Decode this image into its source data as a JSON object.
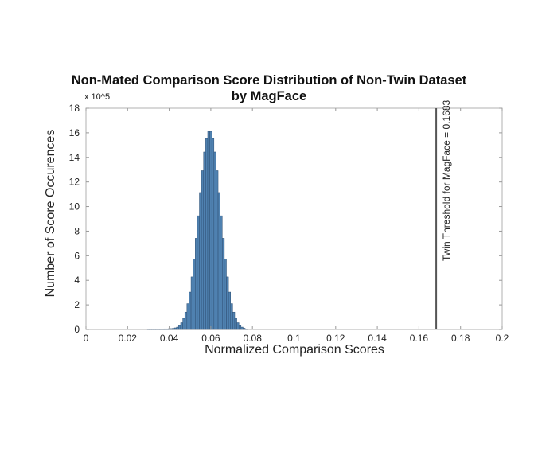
{
  "chart_data": {
    "type": "bar",
    "subtype": "histogram",
    "title": "Non-Mated Comparison Score Distribution of Non-Twin Dataset by MagFace",
    "title_lines": [
      "Non-Mated Comparison Score Distribution of Non-Twin Dataset",
      "by MagFace"
    ],
    "xlabel": "Normalized Comparison Scores",
    "ylabel": "Number of Score Occurences",
    "y_multiplier": "x 10^5",
    "xlim": [
      0,
      0.2
    ],
    "ylim": [
      0,
      18
    ],
    "xticks": [
      0,
      0.02,
      0.04,
      0.06,
      0.08,
      0.1,
      0.12,
      0.14,
      0.16,
      0.18,
      0.2
    ],
    "xtick_labels": [
      "0",
      "0.02",
      "0.04",
      "0.06",
      "0.08",
      "0.1",
      "0.12",
      "0.14",
      "0.16",
      "0.18",
      "0.2"
    ],
    "yticks": [
      0,
      2,
      4,
      6,
      8,
      10,
      12,
      14,
      16,
      18
    ],
    "ytick_labels": [
      "0",
      "2",
      "4",
      "6",
      "8",
      "10",
      "12",
      "14",
      "16",
      "18"
    ],
    "grid": false,
    "bin_width": 0.001,
    "bin_centers": [
      0.03,
      0.031,
      0.032,
      0.033,
      0.034,
      0.035,
      0.036,
      0.037,
      0.038,
      0.039,
      0.04,
      0.041,
      0.042,
      0.043,
      0.044,
      0.045,
      0.046,
      0.047,
      0.048,
      0.049,
      0.05,
      0.051,
      0.052,
      0.053,
      0.054,
      0.055,
      0.056,
      0.057,
      0.058,
      0.059,
      0.06,
      0.061,
      0.062,
      0.063,
      0.064,
      0.065,
      0.066,
      0.067,
      0.068,
      0.069,
      0.07,
      0.071,
      0.072,
      0.073,
      0.074,
      0.075,
      0.076,
      0.077
    ],
    "values": [
      0.02,
      0.02,
      0.02,
      0.03,
      0.03,
      0.03,
      0.04,
      0.04,
      0.05,
      0.05,
      0.06,
      0.07,
      0.09,
      0.13,
      0.19,
      0.33,
      0.55,
      0.91,
      1.41,
      2.1,
      3.04,
      4.28,
      5.74,
      7.42,
      9.25,
      11.14,
      12.92,
      14.44,
      15.54,
      16.12,
      16.12,
      15.54,
      14.44,
      12.92,
      11.14,
      9.25,
      7.42,
      5.74,
      4.28,
      3.04,
      2.1,
      1.41,
      0.91,
      0.55,
      0.33,
      0.19,
      0.1,
      0.04
    ],
    "bar_color": "#4f81b0",
    "bar_edge_color": "#2e4f73",
    "annotations": [
      {
        "type": "vline",
        "x": 0.1683,
        "color": "#555555",
        "label": "Twin Threshold for MagFace = 0.1683",
        "label_rotation": 90
      }
    ]
  }
}
